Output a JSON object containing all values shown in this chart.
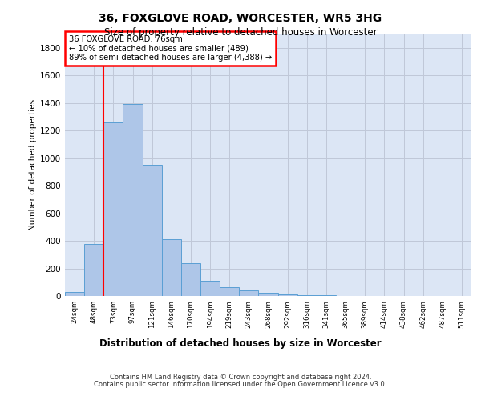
{
  "title_line1": "36, FOXGLOVE ROAD, WORCESTER, WR5 3HG",
  "title_line2": "Size of property relative to detached houses in Worcester",
  "xlabel": "Distribution of detached houses by size in Worcester",
  "ylabel": "Number of detached properties",
  "footer_line1": "Contains HM Land Registry data © Crown copyright and database right 2024.",
  "footer_line2": "Contains public sector information licensed under the Open Government Licence v3.0.",
  "annotation_line1": "36 FOXGLOVE ROAD: 76sqm",
  "annotation_line2": "← 10% of detached houses are smaller (489)",
  "annotation_line3": "89% of semi-detached houses are larger (4,388) →",
  "bar_labels": [
    "24sqm",
    "48sqm",
    "73sqm",
    "97sqm",
    "121sqm",
    "146sqm",
    "170sqm",
    "194sqm",
    "219sqm",
    "243sqm",
    "268sqm",
    "292sqm",
    "316sqm",
    "341sqm",
    "365sqm",
    "389sqm",
    "414sqm",
    "438sqm",
    "462sqm",
    "487sqm",
    "511sqm"
  ],
  "bar_values": [
    30,
    380,
    1260,
    1390,
    950,
    410,
    240,
    110,
    65,
    38,
    22,
    12,
    6,
    3,
    2,
    1,
    0,
    0,
    0,
    0,
    0
  ],
  "bar_color": "#aec6e8",
  "bar_edge_color": "#5a9fd4",
  "red_line_x": 1.5,
  "ylim": [
    0,
    1900
  ],
  "yticks": [
    0,
    200,
    400,
    600,
    800,
    1000,
    1200,
    1400,
    1600,
    1800
  ],
  "bg_color": "#dce6f5",
  "grid_color": "#c0c8d8"
}
